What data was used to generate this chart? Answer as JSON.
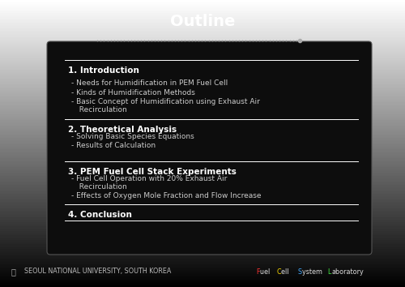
{
  "title": "Outline",
  "title_color": "#ffffff",
  "title_fontsize": 14,
  "bg_outer": "#4a4a4a",
  "bg_gradient_top": "#555555",
  "bg_gradient_bot": "#333333",
  "content_box_color": "#111111",
  "dotted_line_color": "#888888",
  "sections": [
    {
      "heading": "1. Introduction",
      "items": [
        "- Needs for Humidification in PEM Fuel Cell",
        "- Kinds of Humidification Methods",
        "- Basic Concept of Humidification using Exhaust Air",
        "  Recirculation"
      ]
    },
    {
      "heading": "2. Theoretical Analysis",
      "items": [
        "- Solving Basic Species Equations",
        "- Results of Calculation"
      ]
    },
    {
      "heading": "3. PEM Fuel Cell Stack Experiments",
      "items": [
        "- Fuel Cell Operation with 20% Exhaust Air",
        "  Recirculation",
        "- Effects of Oxygen Mole Fraction and Flow Increase"
      ]
    },
    {
      "heading": "4. Conclusion",
      "items": []
    }
  ],
  "footer_left": "SEOUL NATIONAL UNIVERSITY, SOUTH KOREA",
  "footer_right_parts": [
    {
      "text": "F",
      "color": "#ff3333"
    },
    {
      "text": "uel ",
      "color": "#dddddd"
    },
    {
      "text": "C",
      "color": "#ffdd00"
    },
    {
      "text": "ell ",
      "color": "#dddddd"
    },
    {
      "text": "S",
      "color": "#44aaff"
    },
    {
      "text": "ystem ",
      "color": "#dddddd"
    },
    {
      "text": "L",
      "color": "#44ee44"
    },
    {
      "text": "aboratory",
      "color": "#dddddd"
    }
  ],
  "separator_color": "#ffffff",
  "heading_color": "#ffffff",
  "item_color": "#cccccc",
  "heading_fontsize": 7.5,
  "item_fontsize": 6.5,
  "footer_fontsize": 5.8
}
